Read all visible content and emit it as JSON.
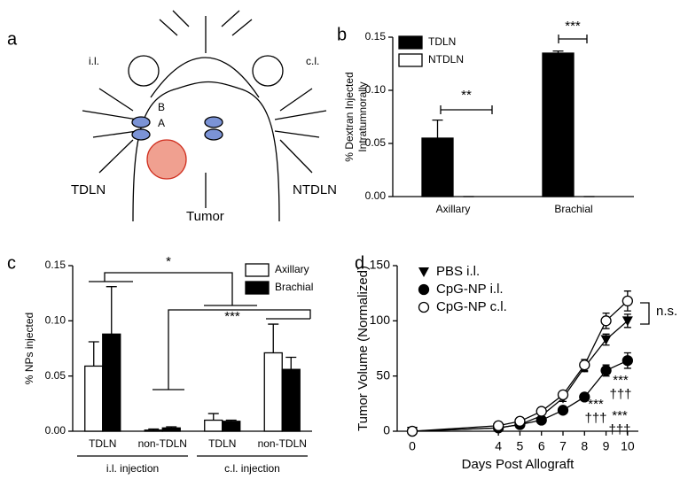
{
  "diagram": {
    "panel": "a",
    "labels": {
      "il": "i.l.",
      "cl": "c.l.",
      "b": "B",
      "a": "A",
      "tdln": "TDLN",
      "ntdln": "NTDLN",
      "tumor": "Tumor"
    }
  },
  "chart_data": [
    {
      "panel": "b",
      "type": "bar",
      "ylabel": [
        "% Dextran Injected",
        "Intratumnorally"
      ],
      "categories": [
        "Axillary",
        "Brachial"
      ],
      "series": [
        {
          "name": "TDLN",
          "color": "#000000",
          "values": [
            0.055,
            0.135
          ],
          "errors": [
            0.017,
            0.002
          ]
        },
        {
          "name": "NTDLN",
          "color": "#ffffff",
          "values": [
            0,
            0
          ],
          "errors": [
            0,
            0
          ]
        }
      ],
      "ylim": [
        0,
        0.15
      ],
      "yticks": [
        {
          "value": 0,
          "label": "0.00"
        },
        {
          "value": 0.05,
          "label": "0.05"
        },
        {
          "value": 0.1,
          "label": "0.10"
        },
        {
          "value": 0.15,
          "label": "0.15"
        }
      ],
      "annotations": [
        "**",
        "***"
      ]
    },
    {
      "panel": "c",
      "type": "bar",
      "ylabel": [
        "% NPs injected"
      ],
      "categories": [
        "TDLN",
        "non-TDLN",
        "TDLN",
        "non-TDLN"
      ],
      "groups": [
        "i.l. injection",
        "c.l. injection"
      ],
      "series": [
        {
          "name": "Axillary",
          "color": "#ffffff",
          "values": [
            0.059,
            0.001,
            0.01,
            0.071
          ],
          "errors": [
            0.022,
            0.001,
            0.006,
            0.026
          ]
        },
        {
          "name": "Brachial",
          "color": "#000000",
          "values": [
            0.088,
            0.003,
            0.009,
            0.056
          ],
          "errors": [
            0.043,
            0.001,
            0.001,
            0.011
          ]
        }
      ],
      "ylim": [
        0,
        0.15
      ],
      "yticks": [
        {
          "value": 0,
          "label": "0.00"
        },
        {
          "value": 0.05,
          "label": "0.05"
        },
        {
          "value": 0.1,
          "label": "0.10"
        },
        {
          "value": 0.15,
          "label": "0.15"
        }
      ],
      "annotations": [
        "*",
        "***"
      ]
    },
    {
      "panel": "d",
      "type": "line",
      "ylabel": [
        "Tumor Volume (Normalized)"
      ],
      "xlabel": "Days Post Allograft",
      "x": [
        0,
        4,
        5,
        6,
        7,
        8,
        9,
        10
      ],
      "series": [
        {
          "name": "PBS i.l.",
          "marker": "triangle",
          "color": "#000000",
          "values": [
            0,
            3,
            6,
            14,
            30,
            58,
            83,
            100
          ],
          "errors": [
            0,
            1,
            1,
            2,
            3,
            4,
            5,
            6
          ]
        },
        {
          "name": "CpG-NP i.l.",
          "marker": "filled-circle",
          "color": "#000000",
          "values": [
            0,
            3,
            6,
            10,
            19,
            31,
            55,
            64
          ],
          "errors": [
            0,
            1,
            1,
            2,
            2,
            3,
            5,
            7
          ]
        },
        {
          "name": "CpG-NP c.l.",
          "marker": "open-circle",
          "color": "#000000",
          "values": [
            0,
            5,
            9,
            18,
            33,
            60,
            100,
            118
          ],
          "errors": [
            0,
            1,
            1,
            2,
            3,
            5,
            7,
            9
          ]
        }
      ],
      "xlim": [
        -0.7,
        10.5
      ],
      "xticks": [
        0,
        4,
        5,
        6,
        7,
        8,
        9,
        10
      ],
      "ylim": [
        0,
        150
      ],
      "yticks": [
        0,
        50,
        100,
        150
      ],
      "annotations": [
        "***",
        "†††",
        "***",
        "†††",
        "***",
        "†††",
        "n.s."
      ]
    }
  ]
}
